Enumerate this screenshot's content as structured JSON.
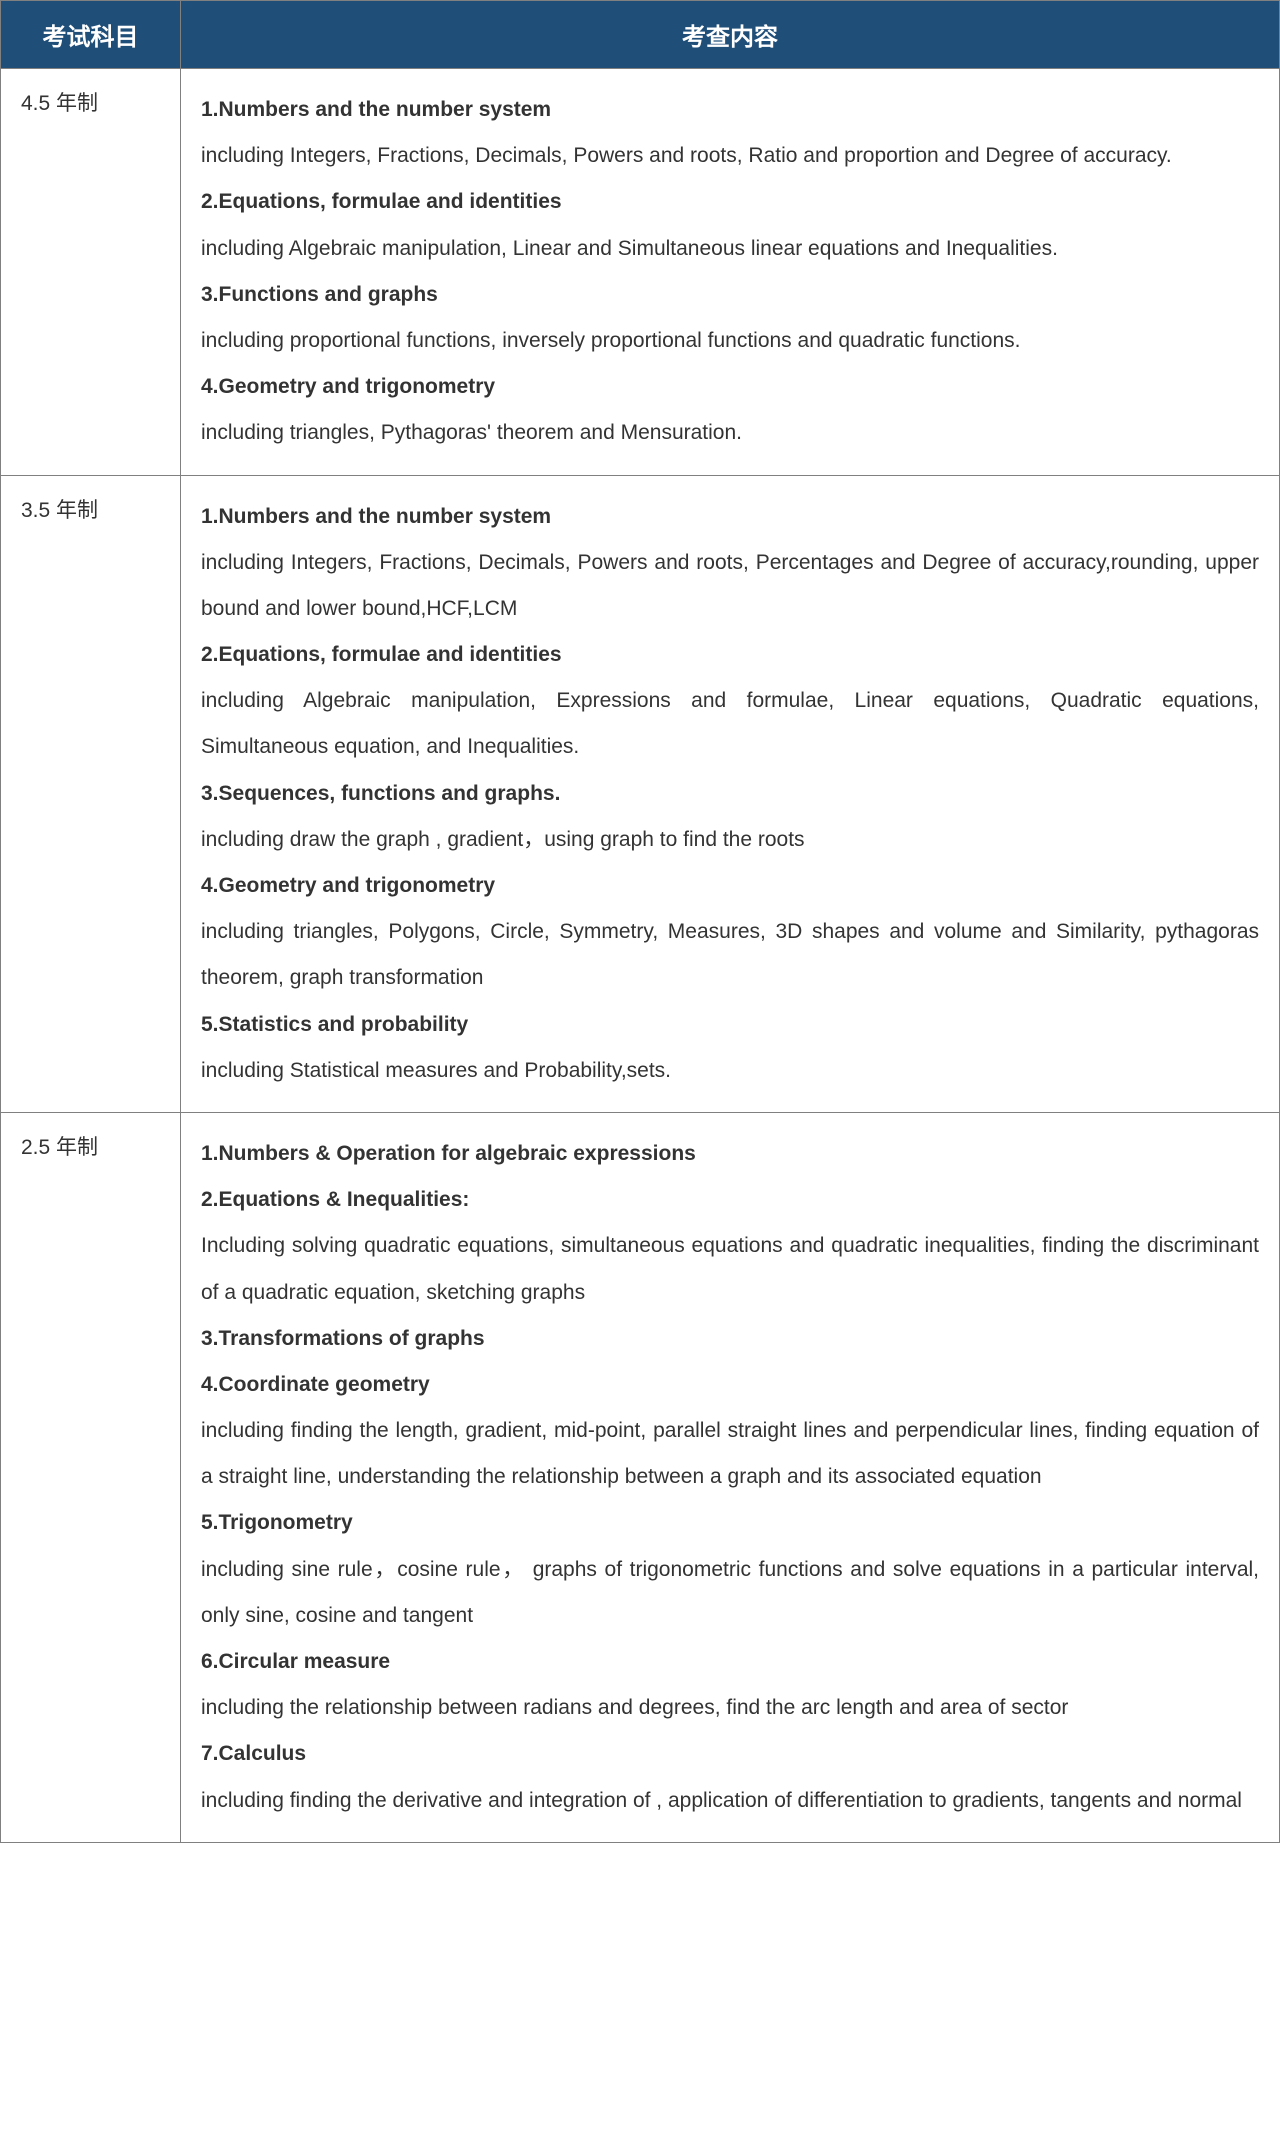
{
  "table": {
    "header": {
      "subject": "考试科目",
      "content": "考查内容"
    },
    "rows": [
      {
        "subject": "4.5 年制",
        "lines": [
          {
            "text": "1.Numbers and the number system",
            "bold": true
          },
          {
            "text": "including Integers, Fractions, Decimals, Powers and roots, Ratio and proportion and Degree of accuracy.",
            "bold": false
          },
          {
            "text": "2.Equations, formulae and identities",
            "bold": true
          },
          {
            "text": "including Algebraic manipulation, Linear and Simultaneous linear equations and Inequalities.",
            "bold": false
          },
          {
            "text": "3.Functions and graphs",
            "bold": true
          },
          {
            "text": "including proportional functions, inversely proportional functions and quadratic functions.",
            "bold": false
          },
          {
            "text": "4.Geometry and trigonometry",
            "bold": true
          },
          {
            "text": "including triangles, Pythagoras'  theorem and Mensuration.",
            "bold": false
          }
        ]
      },
      {
        "subject": "3.5 年制",
        "lines": [
          {
            "text": "1.Numbers and the number system",
            "bold": true
          },
          {
            "text": "including Integers, Fractions, Decimals, Powers and roots, Percentages and Degree of accuracy,rounding, upper bound and lower bound,HCF,LCM",
            "bold": false
          },
          {
            "text": "2.Equations, formulae and identities",
            "bold": true
          },
          {
            "text": "including Algebraic manipulation, Expressions and formulae, Linear equations, Quadratic equations, Simultaneous equation, and Inequalities.",
            "bold": false
          },
          {
            "text": "3.Sequences, functions and graphs.",
            "bold": true
          },
          {
            "text": "including draw the graph , gradient，using graph to find the roots",
            "bold": false
          },
          {
            "text": "4.Geometry and trigonometry",
            "bold": true
          },
          {
            "text": "including triangles, Polygons, Circle, Symmetry, Measures, 3D shapes and volume and Similarity, pythagoras theorem, graph transformation",
            "bold": false
          },
          {
            "text": "5.Statistics and probability",
            "bold": true
          },
          {
            "text": "including Statistical measures and Probability,sets.",
            "bold": false
          }
        ]
      },
      {
        "subject": "2.5 年制",
        "lines": [
          {
            "text": "1.Numbers & Operation for algebraic expressions",
            "bold": true
          },
          {
            "text": "2.Equations & Inequalities:",
            "bold": true
          },
          {
            "text": "Including solving quadratic equations, simultaneous equations and quadratic inequalities, finding the discriminant of a quadratic equation, sketching graphs",
            "bold": false
          },
          {
            "text": "3.Transformations of graphs",
            "bold": true
          },
          {
            "text": "4.Coordinate geometry",
            "bold": true
          },
          {
            "text": "including finding the length, gradient, mid-point, parallel straight lines and perpendicular lines, finding equation of a straight line, understanding the relationship between a graph and its associated equation",
            "bold": false
          },
          {
            "text": "5.Trigonometry",
            "bold": true
          },
          {
            "text": "including sine rule，cosine rule，  graphs of trigonometric functions and solve equations in a particular interval, only sine, cosine and tangent",
            "bold": false
          },
          {
            "text": "6.Circular measure",
            "bold": true
          },
          {
            "text": "including the relationship between radians and degrees, find the arc length and area of sector",
            "bold": false
          },
          {
            "text": "7.Calculus",
            "bold": true
          },
          {
            "text": "including finding the derivative and integration of , application of differentiation to gradients, tangents and normal",
            "bold": false
          }
        ]
      }
    ]
  },
  "style": {
    "header_bg": "#1f4e79",
    "header_text_color": "#ffffff",
    "border_color": "#808080",
    "body_text_color": "#333333",
    "background_color": "#ffffff",
    "header_fontsize": 24,
    "body_fontsize": 21,
    "line_height": 2.2
  }
}
